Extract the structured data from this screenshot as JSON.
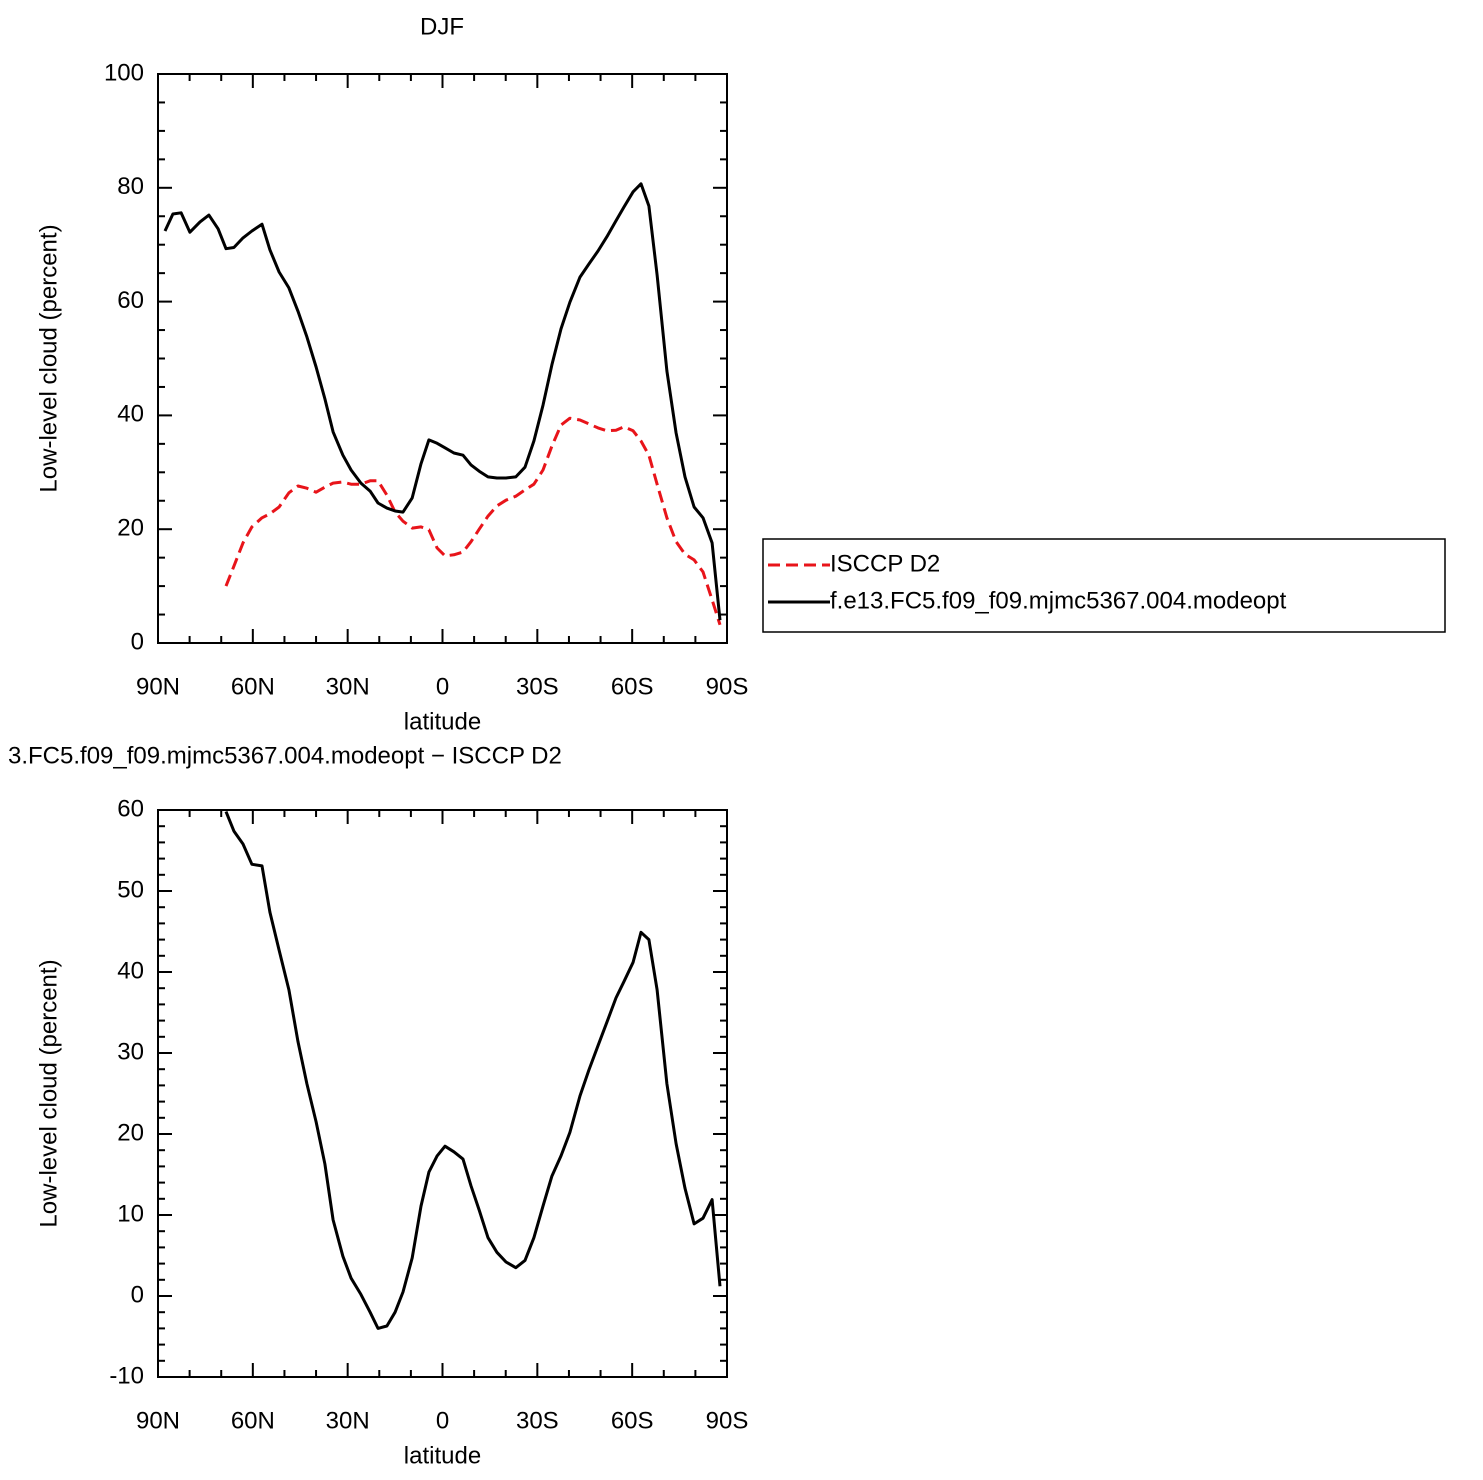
{
  "chart_data": [
    {
      "type": "line",
      "title": "DJF",
      "xlabel": "latitude",
      "ylabel": "Low-level cloud (percent)",
      "x": [
        87.8,
        85.3,
        82.7,
        79.9,
        76.7,
        73.9,
        71.0,
        68.5,
        66.0,
        63.1,
        60.3,
        57.1,
        54.6,
        51.7,
        48.6,
        45.7,
        42.9,
        40.0,
        37.2,
        34.6,
        31.5,
        28.9,
        25.8,
        22.9,
        20.4,
        17.6,
        15.0,
        12.5,
        9.6,
        6.8,
        4.3,
        1.7,
        -0.8,
        -3.6,
        -6.5,
        -9.0,
        -11.6,
        -14.4,
        -17.2,
        -20.1,
        -23.2,
        -26.1,
        -28.9,
        -31.8,
        -34.6,
        -37.5,
        -40.3,
        -43.5,
        -46.3,
        -49.2,
        -52.0,
        -54.9,
        -57.4,
        -60.3,
        -62.8,
        -65.3,
        -67.9,
        -71.0,
        -73.9,
        -76.7,
        -79.6,
        -82.4,
        -85.3,
        -87.8
      ],
      "series": [
        {
          "name": "ISCCP D2",
          "color": "#e8141a",
          "dash": true,
          "values": [
            null,
            null,
            null,
            null,
            null,
            null,
            null,
            10.0,
            13.5,
            17.6,
            20.4,
            22.0,
            22.7,
            23.9,
            26.4,
            27.6,
            27.2,
            26.5,
            27.4,
            28.1,
            28.3,
            27.9,
            27.9,
            28.5,
            28.5,
            26.0,
            23.0,
            21.4,
            20.2,
            20.4,
            19.9,
            16.7,
            15.3,
            15.5,
            16.0,
            17.8,
            20.0,
            22.3,
            24.1,
            25.1,
            25.8,
            26.9,
            27.9,
            30.4,
            34.6,
            38.3,
            39.5,
            39.2,
            38.5,
            37.8,
            37.3,
            37.4,
            38.0,
            37.3,
            35.5,
            33.0,
            27.9,
            22.0,
            17.8,
            15.6,
            14.6,
            12.5,
            7.6,
            3.2
          ]
        },
        {
          "name": "f.e13.FC5.f09_f09.mjmc5367.004.modeopt",
          "color": "#000000",
          "dash": false,
          "values": [
            72.4,
            75.4,
            75.6,
            72.2,
            74.0,
            75.2,
            72.8,
            69.3,
            69.5,
            71.2,
            72.4,
            73.6,
            69.1,
            65.2,
            62.4,
            58.3,
            53.8,
            48.5,
            42.9,
            37.1,
            33.0,
            30.4,
            28.1,
            26.7,
            24.6,
            23.7,
            23.2,
            23.0,
            25.5,
            31.5,
            35.7,
            35.1,
            34.3,
            33.4,
            33.0,
            31.3,
            30.2,
            29.2,
            29.0,
            29.0,
            29.2,
            30.9,
            35.5,
            41.8,
            48.9,
            55.2,
            59.9,
            64.3,
            66.6,
            68.9,
            71.4,
            74.2,
            76.6,
            79.3,
            80.7,
            76.8,
            64.7,
            47.8,
            36.9,
            29.2,
            23.9,
            22.0,
            17.6,
            4.0
          ]
        }
      ],
      "xlim": [
        90,
        -90
      ],
      "xticks": [
        {
          "value": 90,
          "label": "90N"
        },
        {
          "value": 60,
          "label": "60N"
        },
        {
          "value": 30,
          "label": "30N"
        },
        0,
        {
          "value": -30,
          "label": "30S"
        },
        {
          "value": -60,
          "label": "60S"
        },
        {
          "value": -90,
          "label": "90S"
        }
      ],
      "ylim": [
        0,
        100
      ],
      "yticks": [
        0,
        20,
        40,
        60,
        80,
        100
      ],
      "legend": "right"
    },
    {
      "type": "line",
      "title": "3.FC5.f09_f09.mjmc5367.004.modeopt − ISCCP D2",
      "xlabel": "latitude",
      "ylabel": "Low-level cloud (percent)",
      "x": [
        68.5,
        66.0,
        63.1,
        60.3,
        57.1,
        54.6,
        51.7,
        48.6,
        45.7,
        42.9,
        40.0,
        37.2,
        34.6,
        31.5,
        28.9,
        25.8,
        22.9,
        20.4,
        17.6,
        15.0,
        12.5,
        9.6,
        6.8,
        4.3,
        1.7,
        -0.8,
        -3.6,
        -6.5,
        -9.0,
        -11.6,
        -14.4,
        -17.2,
        -20.1,
        -23.2,
        -26.1,
        -28.9,
        -31.8,
        -34.6,
        -37.5,
        -40.3,
        -43.5,
        -46.3,
        -49.2,
        -52.0,
        -54.9,
        -57.4,
        -60.3,
        -62.8,
        -65.3,
        -67.9,
        -71.0,
        -73.9,
        -76.7,
        -79.6,
        -82.4,
        -85.3,
        -87.8
      ],
      "series": [
        {
          "color": "#000000",
          "dash": false,
          "values": [
            59.8,
            57.4,
            55.8,
            53.3,
            53.1,
            47.4,
            42.7,
            37.8,
            31.4,
            26.2,
            21.5,
            16.3,
            9.4,
            4.9,
            2.2,
            0.2,
            -2.0,
            -4.0,
            -3.7,
            -2.0,
            0.5,
            4.7,
            11.1,
            15.3,
            17.3,
            18.5,
            17.8,
            16.9,
            13.6,
            10.6,
            7.2,
            5.4,
            4.2,
            3.5,
            4.4,
            7.2,
            11.1,
            14.8,
            17.3,
            20.2,
            24.7,
            27.9,
            30.9,
            33.8,
            36.8,
            38.8,
            41.2,
            44.9,
            44.0,
            37.8,
            26.2,
            18.8,
            13.3,
            8.9,
            9.6,
            11.9,
            1.2
          ]
        }
      ],
      "xlim": [
        90,
        -90
      ],
      "xticks": [
        {
          "value": 90,
          "label": "90N"
        },
        {
          "value": 60,
          "label": "60N"
        },
        {
          "value": 30,
          "label": "30N"
        },
        0,
        {
          "value": -30,
          "label": "30S"
        },
        {
          "value": -60,
          "label": "60S"
        },
        {
          "value": -90,
          "label": "90S"
        }
      ],
      "ylim": [
        -10,
        60
      ],
      "yticks": [
        -10,
        0,
        10,
        20,
        30,
        40,
        50,
        60
      ]
    }
  ]
}
